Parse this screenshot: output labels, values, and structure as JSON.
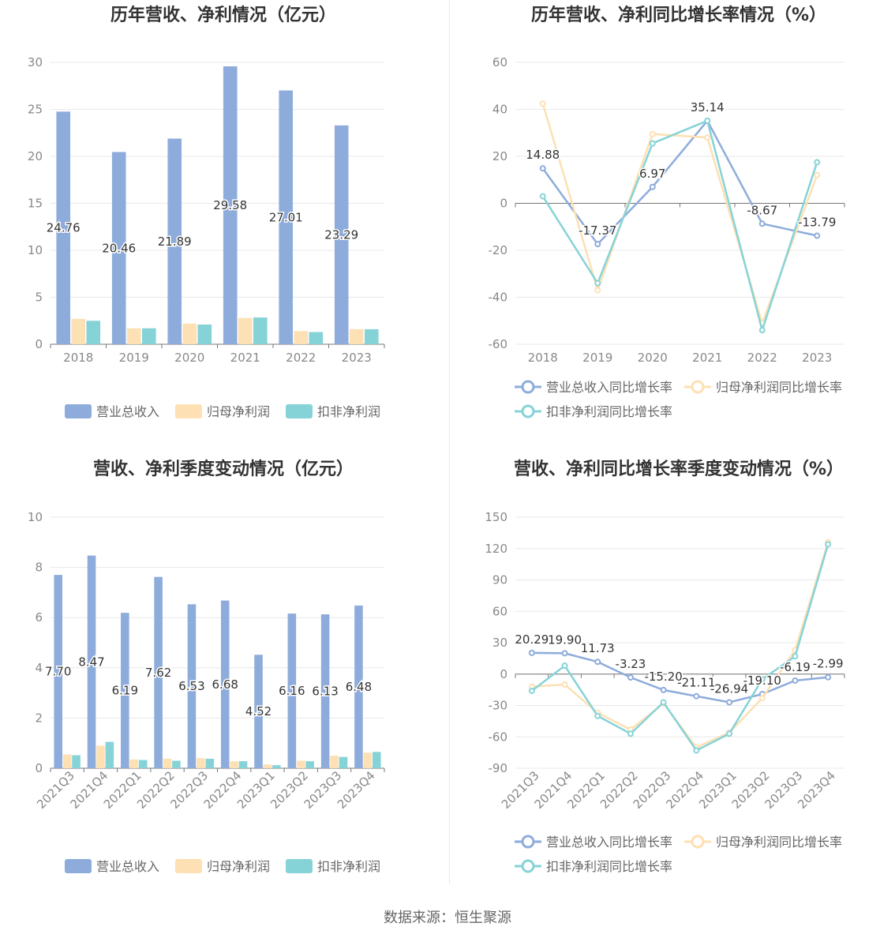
{
  "source_text": "数据来源：恒生聚源",
  "colors": {
    "revenue": "#8eacdb",
    "net_profit": "#fde0b3",
    "deducted_profit": "#86d3d7",
    "grid": "#e8e8e8",
    "axis": "#999999"
  },
  "chart_data": [
    {
      "type": "bar",
      "title": "历年营收、净利情况（亿元）",
      "categories": [
        "2018",
        "2019",
        "2020",
        "2021",
        "2022",
        "2023"
      ],
      "ylim": [
        0,
        30
      ],
      "yticks": [
        0,
        5,
        10,
        15,
        20,
        25,
        30
      ],
      "series": [
        {
          "name": "营业总收入",
          "values": [
            24.76,
            20.46,
            21.89,
            29.58,
            27.01,
            23.29
          ],
          "labels": [
            "24.76",
            "20.46",
            "21.89",
            "29.58",
            "27.01",
            "23.29"
          ]
        },
        {
          "name": "归母净利润",
          "values": [
            2.7,
            1.7,
            2.2,
            2.8,
            1.4,
            1.6
          ]
        },
        {
          "name": "扣非净利润",
          "values": [
            2.5,
            1.7,
            2.1,
            2.85,
            1.3,
            1.6
          ]
        }
      ],
      "legend": "bottom"
    },
    {
      "type": "line",
      "title": "历年营收、净利同比增长率情况（%）",
      "categories": [
        "2018",
        "2019",
        "2020",
        "2021",
        "2022",
        "2023"
      ],
      "ylim": [
        -60,
        60
      ],
      "yticks": [
        -60,
        -40,
        -20,
        0,
        20,
        40,
        60
      ],
      "series": [
        {
          "name": "营业总收入同比增长率",
          "values": [
            14.88,
            -17.37,
            6.97,
            35.14,
            -8.67,
            -13.79
          ],
          "labels": [
            "14.88",
            "-17.37",
            "6.97",
            "35.14",
            "-8.67",
            "-13.79"
          ]
        },
        {
          "name": "归母净利润同比增长率",
          "values": [
            42.5,
            -37,
            29.5,
            28,
            -51,
            12
          ]
        },
        {
          "name": "扣非净利润同比增长率",
          "values": [
            3,
            -34,
            25.5,
            35.14,
            -54,
            17.5
          ]
        }
      ],
      "legend": "bottom"
    },
    {
      "type": "bar",
      "title": "营收、净利季度变动情况（亿元）",
      "categories": [
        "2021Q3",
        "2021Q4",
        "2022Q1",
        "2022Q2",
        "2022Q3",
        "2022Q4",
        "2023Q1",
        "2023Q2",
        "2023Q3",
        "2023Q4"
      ],
      "ylim": [
        0,
        10
      ],
      "yticks": [
        0,
        2,
        4,
        6,
        8,
        10
      ],
      "series": [
        {
          "name": "营业总收入",
          "values": [
            7.7,
            8.47,
            6.19,
            7.62,
            6.53,
            6.68,
            4.52,
            6.16,
            6.13,
            6.48
          ],
          "labels": [
            "7.70",
            "8.47",
            "6.19",
            "7.62",
            "6.53",
            "6.68",
            "4.52",
            "6.16",
            "6.13",
            "6.48"
          ]
        },
        {
          "name": "归母净利润",
          "values": [
            0.55,
            0.9,
            0.35,
            0.38,
            0.4,
            0.28,
            0.15,
            0.3,
            0.5,
            0.62
          ]
        },
        {
          "name": "扣非净利润",
          "values": [
            0.52,
            1.05,
            0.33,
            0.3,
            0.38,
            0.28,
            0.12,
            0.28,
            0.45,
            0.65
          ]
        }
      ],
      "legend": "bottom"
    },
    {
      "type": "line",
      "title": "营收、净利同比增长率季度变动情况（%）",
      "categories": [
        "2021Q3",
        "2021Q4",
        "2022Q1",
        "2022Q2",
        "2022Q3",
        "2022Q4",
        "2023Q1",
        "2023Q2",
        "2023Q3",
        "2023Q4"
      ],
      "ylim": [
        -90,
        150
      ],
      "yticks": [
        -90,
        -60,
        -30,
        0,
        30,
        60,
        90,
        120,
        150
      ],
      "series": [
        {
          "name": "营业总收入同比增长率",
          "values": [
            20.29,
            19.9,
            11.73,
            -3.23,
            -15.2,
            -21.11,
            -26.94,
            -19.1,
            -6.19,
            -2.99
          ],
          "labels": [
            "20.29",
            "19.90",
            "11.73",
            "-3.23",
            "-15.20",
            "-21.11",
            "-26.94",
            "-19.10",
            "-6.19",
            "-2.99"
          ]
        },
        {
          "name": "归母净利润同比增长率",
          "values": [
            -12,
            -10,
            -37,
            -53,
            -28,
            -70,
            -56,
            -23,
            23,
            126
          ]
        },
        {
          "name": "扣非净利润同比增长率",
          "values": [
            -16,
            8,
            -40,
            -57,
            -27,
            -73,
            -57,
            -5,
            17,
            124
          ]
        }
      ],
      "legend": "bottom"
    }
  ]
}
